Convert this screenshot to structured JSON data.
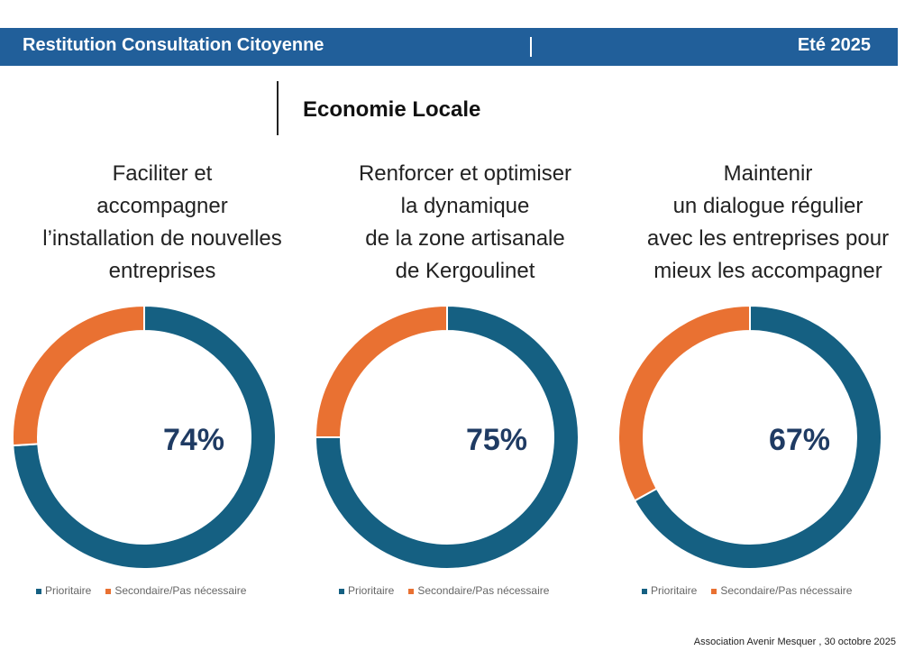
{
  "header": {
    "title": "Restitution Consultation Citoyenne",
    "period": "Eté 2025",
    "section_title": "Economie Locale"
  },
  "colors": {
    "banner": "#215f9a",
    "prioritaire": "#156082",
    "secondaire": "#e97132",
    "label": "#1f3b63"
  },
  "chart_data": [
    {
      "type": "pie",
      "title": "Faciliter et accompagner l’installation de nouvelles entreprises",
      "title_lines": [
        "Faciliter et",
        "accompagner",
        "l’installation de nouvelles",
        "entreprises"
      ],
      "categories": [
        "Prioritaire",
        "Secondaire/Pas nécessaire"
      ],
      "values": [
        74,
        26
      ],
      "center_label": "74%",
      "legend_position": "bottom"
    },
    {
      "type": "pie",
      "title": "Renforcer et optimiser la dynamique de la zone artisanale de Kergoulinet",
      "title_lines": [
        "Renforcer et optimiser",
        "la dynamique",
        "de la zone artisanale",
        "de Kergoulinet"
      ],
      "categories": [
        "Prioritaire",
        "Secondaire/Pas nécessaire"
      ],
      "values": [
        75,
        25
      ],
      "center_label": "75%",
      "legend_position": "bottom"
    },
    {
      "type": "pie",
      "title": "Maintenir un dialogue régulier avec les entreprises pour mieux les accompagner",
      "title_lines": [
        "Maintenir",
        "un dialogue régulier",
        "avec les entreprises pour",
        "mieux les accompagner"
      ],
      "categories": [
        "Prioritaire",
        "Secondaire/Pas nécessaire"
      ],
      "values": [
        67,
        33
      ],
      "center_label": "67%",
      "legend_position": "bottom"
    }
  ],
  "footer": {
    "credit": "Association Avenir Mesquer , 30 octobre 2025"
  }
}
